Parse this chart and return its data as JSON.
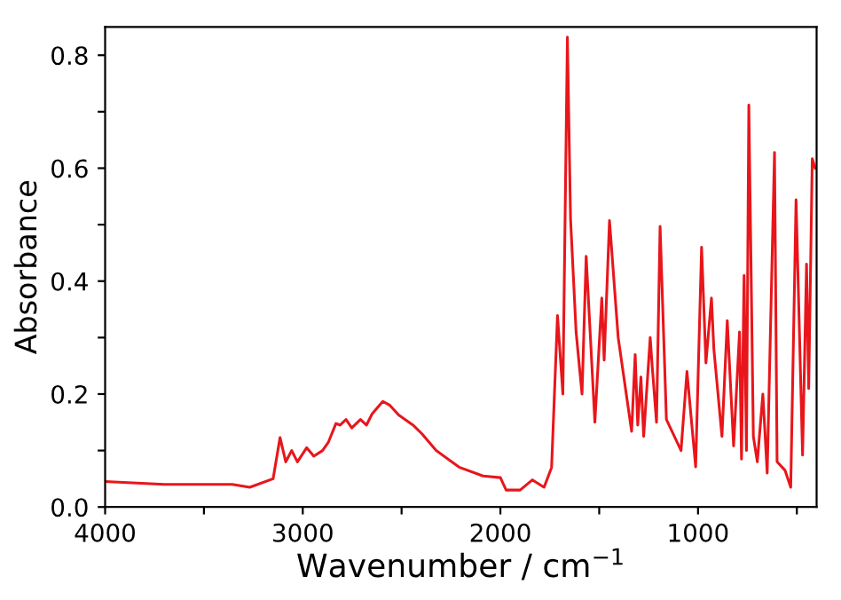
{
  "chart_data": {
    "type": "line",
    "xlabel": "Wavenumber / cm$^{−1}$",
    "ylabel": "Absorbance",
    "xlim": [
      4000,
      400
    ],
    "ylim": [
      0,
      0.85
    ],
    "xticks": [
      4000,
      {
        "value": 3500,
        "label": null
      },
      3000,
      {
        "value": 2500,
        "label": null
      },
      2000,
      {
        "value": 1500,
        "label": null
      },
      1000,
      {
        "value": 500,
        "label": null
      }
    ],
    "yticks": [
      {
        "value": 0,
        "label": "0.0"
      },
      {
        "value": 0.1,
        "label": null
      },
      {
        "value": 0.2,
        "label": "0.2"
      },
      {
        "value": 0.3,
        "label": null
      },
      {
        "value": 0.4,
        "label": "0.4"
      },
      {
        "value": 0.5,
        "label": null
      },
      {
        "value": 0.6,
        "label": "0.6"
      },
      {
        "value": 0.7,
        "label": null
      },
      {
        "value": 0.8,
        "label": "0.8"
      }
    ],
    "grid": false,
    "marker": "none",
    "line_style": "solid",
    "series": [
      {
        "color": "#e8161b",
        "x": [
          4000,
          3700,
          3357,
          3268,
          3150,
          3115,
          3086,
          3056,
          3027,
          2980,
          2944,
          2900,
          2870,
          2832,
          2811,
          2781,
          2752,
          2708,
          2678,
          2649,
          2595,
          2559,
          2515,
          2442,
          2398,
          2325,
          2206,
          2088,
          2000,
          1971,
          1900,
          1838,
          1779,
          1741,
          1711,
          1684,
          1661,
          1645,
          1617,
          1587,
          1566,
          1522,
          1487,
          1475,
          1448,
          1440,
          1404,
          1336,
          1318,
          1305,
          1289,
          1275,
          1242,
          1232,
          1210,
          1192,
          1160,
          1086,
          1056,
          1012,
          982,
          960,
          932,
          920,
          879,
          852,
          820,
          790,
          780,
          767,
          755,
          743,
          720,
          700,
          672,
          650,
          613,
          600,
          560,
          531,
          504,
          471,
          451,
          440,
          422,
          407
        ],
        "values": [
          0.045,
          0.04,
          0.04,
          0.035,
          0.05,
          0.123,
          0.08,
          0.1,
          0.08,
          0.105,
          0.09,
          0.1,
          0.115,
          0.148,
          0.145,
          0.155,
          0.14,
          0.155,
          0.145,
          0.165,
          0.187,
          0.18,
          0.163,
          0.145,
          0.13,
          0.1,
          0.07,
          0.055,
          0.052,
          0.03,
          0.03,
          0.048,
          0.035,
          0.07,
          0.339,
          0.2,
          0.832,
          0.51,
          0.31,
          0.2,
          0.444,
          0.15,
          0.37,
          0.26,
          0.507,
          0.47,
          0.3,
          0.134,
          0.27,
          0.145,
          0.23,
          0.125,
          0.3,
          0.25,
          0.15,
          0.497,
          0.155,
          0.1,
          0.24,
          0.071,
          0.46,
          0.255,
          0.37,
          0.28,
          0.125,
          0.33,
          0.108,
          0.31,
          0.085,
          0.41,
          0.1,
          0.712,
          0.125,
          0.08,
          0.2,
          0.06,
          0.628,
          0.08,
          0.065,
          0.035,
          0.544,
          0.092,
          0.43,
          0.21,
          0.617,
          0.6
        ]
      }
    ]
  }
}
